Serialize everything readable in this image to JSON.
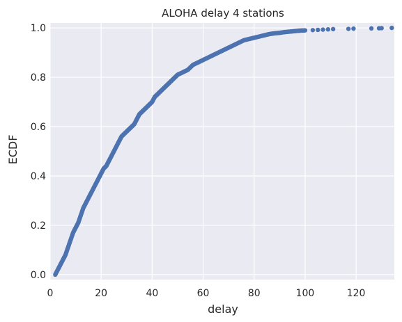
{
  "colors": {
    "background": "#ffffff",
    "plot_background": "#eaeaf2",
    "grid": "#ffffff",
    "point": "#4c72b0",
    "text": "#262626"
  },
  "chart_data": {
    "type": "scatter",
    "title": "ALOHA delay 4 stations",
    "xlabel": "delay",
    "ylabel": "ECDF",
    "xlim": [
      0,
      135
    ],
    "ylim": [
      -0.02,
      1.02
    ],
    "x_ticks": [
      0,
      20,
      40,
      60,
      80,
      100,
      120
    ],
    "y_ticks": [
      0.0,
      0.2,
      0.4,
      0.6,
      0.8,
      1.0
    ],
    "x_tick_labels": [
      "0",
      "20",
      "40",
      "60",
      "80",
      "100",
      "120"
    ],
    "y_tick_labels": [
      "0.0",
      "0.2",
      "0.4",
      "0.6",
      "0.8",
      "1.0"
    ],
    "grid": true,
    "legend": "none",
    "series": [
      {
        "points": [
          [
            2.0,
            0.0
          ],
          [
            3.0,
            0.02
          ],
          [
            4.0,
            0.04
          ],
          [
            5.0,
            0.06
          ],
          [
            6.0,
            0.08
          ],
          [
            7.0,
            0.11
          ],
          [
            8.0,
            0.14
          ],
          [
            9.0,
            0.17
          ],
          [
            10.0,
            0.19
          ],
          [
            11.0,
            0.21
          ],
          [
            12.0,
            0.24
          ],
          [
            13.0,
            0.27
          ],
          [
            14.0,
            0.29
          ],
          [
            15.0,
            0.31
          ],
          [
            16.0,
            0.33
          ],
          [
            17.0,
            0.35
          ],
          [
            18.0,
            0.37
          ],
          [
            19.0,
            0.39
          ],
          [
            20.0,
            0.41
          ],
          [
            21.0,
            0.43
          ],
          [
            22.0,
            0.44
          ],
          [
            23.0,
            0.46
          ],
          [
            24.0,
            0.48
          ],
          [
            25.0,
            0.5
          ],
          [
            26.0,
            0.52
          ],
          [
            27.0,
            0.54
          ],
          [
            28.0,
            0.56
          ],
          [
            29.0,
            0.57
          ],
          [
            30.0,
            0.58
          ],
          [
            31.0,
            0.59
          ],
          [
            32.0,
            0.6
          ],
          [
            33.0,
            0.61
          ],
          [
            34.0,
            0.63
          ],
          [
            35.0,
            0.65
          ],
          [
            36.0,
            0.66
          ],
          [
            37.0,
            0.67
          ],
          [
            38.0,
            0.68
          ],
          [
            39.0,
            0.69
          ],
          [
            40.0,
            0.7
          ],
          [
            41.0,
            0.72
          ],
          [
            42.0,
            0.73
          ],
          [
            43.0,
            0.74
          ],
          [
            44.0,
            0.75
          ],
          [
            45.0,
            0.76
          ],
          [
            46.0,
            0.77
          ],
          [
            47.0,
            0.78
          ],
          [
            48.0,
            0.79
          ],
          [
            49.0,
            0.8
          ],
          [
            50.0,
            0.81
          ],
          [
            52.0,
            0.82
          ],
          [
            54.0,
            0.83
          ],
          [
            56.0,
            0.85
          ],
          [
            58.0,
            0.86
          ],
          [
            60.0,
            0.87
          ],
          [
            62.0,
            0.88
          ],
          [
            64.0,
            0.89
          ],
          [
            66.0,
            0.9
          ],
          [
            68.0,
            0.91
          ],
          [
            70.0,
            0.92
          ],
          [
            72.0,
            0.93
          ],
          [
            74.0,
            0.94
          ],
          [
            76.0,
            0.95
          ],
          [
            78.0,
            0.955
          ],
          [
            80.0,
            0.96
          ],
          [
            82.0,
            0.965
          ],
          [
            84.0,
            0.97
          ],
          [
            86.0,
            0.975
          ],
          [
            88.0,
            0.978
          ],
          [
            90.0,
            0.98
          ],
          [
            92.0,
            0.983
          ],
          [
            94.0,
            0.985
          ],
          [
            96.0,
            0.987
          ],
          [
            98.0,
            0.989
          ],
          [
            100.0,
            0.99
          ],
          [
            103.0,
            0.991
          ],
          [
            105.0,
            0.992
          ],
          [
            107.0,
            0.993
          ],
          [
            109.0,
            0.994
          ],
          [
            111.0,
            0.995
          ],
          [
            117.0,
            0.996
          ],
          [
            119.0,
            0.997
          ],
          [
            126.0,
            0.998
          ],
          [
            129.0,
            0.9985
          ],
          [
            130.0,
            0.999
          ],
          [
            134.0,
            1.0
          ]
        ]
      }
    ]
  }
}
